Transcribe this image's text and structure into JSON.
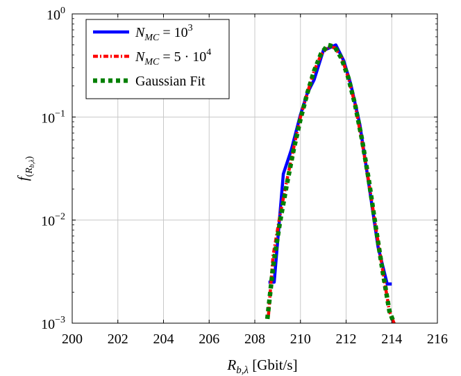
{
  "chart_data": {
    "type": "line",
    "title": "",
    "xlabel": "R_{b,λ} [Gbit/s]",
    "ylabel": "f_(R_{b,λ})",
    "xlim": [
      200,
      216
    ],
    "ylim": [
      0.001,
      1
    ],
    "yscale": "log",
    "grid": true,
    "legend_position": "top-left",
    "xticks": [
      200,
      202,
      204,
      206,
      208,
      210,
      212,
      214,
      216
    ],
    "yticks": [
      0.001,
      0.01,
      0.1,
      1
    ],
    "ytick_labels": [
      {
        "base": "10",
        "exp": "−3"
      },
      {
        "base": "10",
        "exp": "−2"
      },
      {
        "base": "10",
        "exp": "−1"
      },
      {
        "base": "10",
        "exp": "0"
      }
    ],
    "series": [
      {
        "name": "N_MC = 10^3",
        "color": "#0000ff",
        "style": "solid",
        "x": [
          208.6,
          208.85,
          209.25,
          209.6,
          210.0,
          210.3,
          210.6,
          211.0,
          211.55,
          211.9,
          212.2,
          212.6,
          213.0,
          213.4,
          213.8,
          214.0
        ],
        "y": [
          0.0025,
          0.0025,
          0.028,
          0.048,
          0.105,
          0.17,
          0.23,
          0.44,
          0.5,
          0.35,
          0.21,
          0.085,
          0.022,
          0.0055,
          0.0024,
          0.0024
        ]
      },
      {
        "name": "N_MC = 5·10^4",
        "color": "#ff0000",
        "style": "dashdot",
        "x": [
          208.6,
          208.8,
          209.1,
          209.4,
          209.7,
          210.0,
          210.3,
          210.6,
          210.9,
          211.2,
          211.5,
          211.8,
          212.1,
          212.4,
          212.7,
          213.0,
          213.3,
          213.6,
          213.9,
          214.1
        ],
        "y": [
          0.0012,
          0.0045,
          0.011,
          0.024,
          0.05,
          0.1,
          0.17,
          0.28,
          0.4,
          0.48,
          0.47,
          0.38,
          0.24,
          0.13,
          0.057,
          0.023,
          0.0085,
          0.0033,
          0.0013,
          0.001
        ]
      },
      {
        "name": "Gaussian Fit",
        "color": "#008000",
        "style": "dotted",
        "x": [
          208.55,
          208.8,
          209.1,
          209.4,
          209.7,
          210.0,
          210.3,
          210.6,
          210.9,
          211.2,
          211.5,
          211.8,
          212.1,
          212.4,
          212.7,
          213.0,
          213.3,
          213.6,
          213.9,
          214.1
        ],
        "y": [
          0.0011,
          0.0035,
          0.0095,
          0.022,
          0.048,
          0.095,
          0.17,
          0.28,
          0.41,
          0.5,
          0.48,
          0.37,
          0.24,
          0.13,
          0.06,
          0.024,
          0.0085,
          0.0032,
          0.0013,
          0.001
        ]
      }
    ],
    "legend": {
      "entries": [
        {
          "lhs": "N",
          "sub": "MC",
          "rhs_base": " = 10",
          "rhs_sup": "3"
        },
        {
          "lhs": "N",
          "sub": "MC",
          "rhs_base": " = 5 · 10",
          "rhs_sup": "4"
        },
        {
          "plain": "Gaussian Fit"
        }
      ]
    }
  }
}
